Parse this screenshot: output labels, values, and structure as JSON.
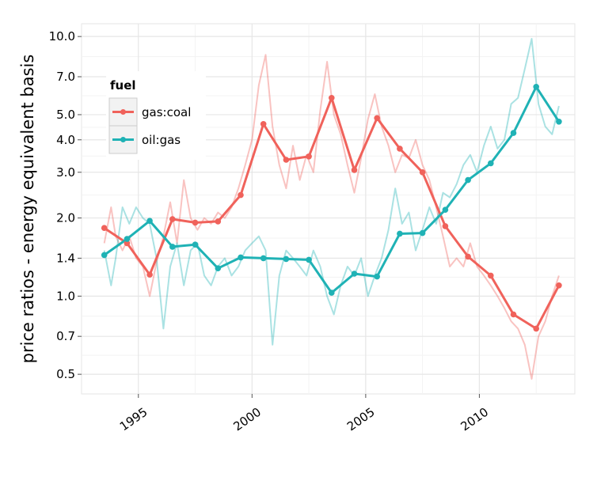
{
  "chart_data": {
    "type": "line",
    "title": "",
    "xlabel": "",
    "ylabel": "price ratios - energy equivalent basis",
    "y_scale": "log",
    "xlim": [
      1992.5,
      2014.2
    ],
    "ylim": [
      0.42,
      11.2
    ],
    "x_ticks": [
      1995,
      2000,
      2005,
      2010
    ],
    "x_tick_labels": [
      "1995",
      "2000",
      "2005",
      "2010"
    ],
    "y_ticks": [
      0.5,
      0.7,
      1.0,
      1.4,
      2.0,
      3.0,
      4.0,
      5.0,
      7.0,
      10.0
    ],
    "y_tick_labels": [
      "0.5",
      "0.7",
      "1.0",
      "1.4",
      "2.0",
      "3.0",
      "4.0",
      "5.0",
      "7.0",
      "10.0"
    ],
    "grid": true,
    "legend": {
      "title": "fuel",
      "position": "top-left"
    },
    "colors": {
      "gas_coal": "#F0625B",
      "oil_gas": "#1FB2B5"
    },
    "series": [
      {
        "name": "gas:coal",
        "color": "#F0625B",
        "x": [
          1993.5,
          1994.5,
          1995.5,
          1996.5,
          1997.5,
          1998.5,
          1999.5,
          2000.5,
          2001.5,
          2002.5,
          2003.5,
          2004.5,
          2005.5,
          2006.5,
          2007.5,
          2008.5,
          2009.5,
          2010.5,
          2011.5,
          2012.5,
          2013.5
        ],
        "values": [
          1.83,
          1.6,
          1.21,
          1.98,
          1.92,
          1.94,
          2.45,
          4.6,
          3.35,
          3.45,
          5.8,
          3.06,
          4.85,
          3.7,
          3.0,
          1.86,
          1.42,
          1.2,
          0.85,
          0.75,
          1.1
        ]
      },
      {
        "name": "oil:gas",
        "color": "#1FB2B5",
        "x": [
          1993.5,
          1994.5,
          1995.5,
          1996.5,
          1997.5,
          1998.5,
          1999.5,
          2000.5,
          2001.5,
          2002.5,
          2003.5,
          2004.5,
          2005.5,
          2006.5,
          2007.5,
          2008.5,
          2009.5,
          2010.5,
          2011.5,
          2012.5,
          2013.5
        ],
        "values": [
          1.44,
          1.66,
          1.95,
          1.55,
          1.58,
          1.28,
          1.41,
          1.4,
          1.39,
          1.38,
          1.03,
          1.22,
          1.19,
          1.74,
          1.75,
          2.15,
          2.8,
          3.25,
          4.25,
          6.4,
          4.7
        ]
      }
    ],
    "monthly_series": [
      {
        "name": "gas:coal",
        "x": [
          1993.5,
          1993.8,
          1994.0,
          1994.3,
          1994.6,
          1994.9,
          1995.2,
          1995.5,
          1995.8,
          1996.1,
          1996.4,
          1996.7,
          1997.0,
          1997.3,
          1997.6,
          1997.9,
          1998.2,
          1998.5,
          1998.8,
          1999.1,
          1999.4,
          1999.7,
          2000.0,
          2000.3,
          2000.6,
          2000.9,
          2001.2,
          2001.5,
          2001.8,
          2002.1,
          2002.4,
          2002.7,
          2003.0,
          2003.3,
          2003.6,
          2003.9,
          2004.2,
          2004.5,
          2004.8,
          2005.1,
          2005.4,
          2005.7,
          2006.0,
          2006.3,
          2006.6,
          2006.9,
          2007.2,
          2007.5,
          2007.8,
          2008.1,
          2008.4,
          2008.7,
          2009.0,
          2009.3,
          2009.6,
          2009.9,
          2010.2,
          2010.5,
          2010.8,
          2011.1,
          2011.4,
          2011.7,
          2012.0,
          2012.3,
          2012.6,
          2012.9,
          2013.2,
          2013.5
        ],
        "values": [
          1.6,
          2.2,
          1.7,
          1.5,
          1.7,
          1.4,
          1.3,
          1.0,
          1.35,
          1.7,
          2.3,
          1.6,
          2.8,
          2.0,
          1.8,
          2.0,
          1.9,
          2.1,
          2.0,
          2.2,
          2.6,
          3.2,
          4.0,
          6.5,
          8.5,
          4.5,
          3.2,
          2.6,
          3.8,
          2.8,
          3.5,
          3.0,
          5.2,
          8.0,
          5.0,
          4.2,
          3.2,
          2.5,
          3.4,
          4.8,
          6.0,
          4.5,
          3.8,
          3.0,
          3.5,
          3.4,
          4.0,
          3.2,
          2.8,
          2.2,
          1.7,
          1.3,
          1.4,
          1.3,
          1.6,
          1.3,
          1.2,
          1.1,
          1.0,
          0.9,
          0.8,
          0.75,
          0.65,
          0.48,
          0.7,
          0.8,
          1.0,
          1.2
        ]
      },
      {
        "name": "oil:gas",
        "x": [
          1993.5,
          1993.8,
          1994.0,
          1994.3,
          1994.6,
          1994.9,
          1995.2,
          1995.5,
          1995.8,
          1996.1,
          1996.4,
          1996.7,
          1997.0,
          1997.3,
          1997.6,
          1997.9,
          1998.2,
          1998.5,
          1998.8,
          1999.1,
          1999.4,
          1999.7,
          2000.0,
          2000.3,
          2000.6,
          2000.9,
          2001.2,
          2001.5,
          2001.8,
          2002.1,
          2002.4,
          2002.7,
          2003.0,
          2003.3,
          2003.6,
          2003.9,
          2004.2,
          2004.5,
          2004.8,
          2005.1,
          2005.4,
          2005.7,
          2006.0,
          2006.3,
          2006.6,
          2006.9,
          2007.2,
          2007.5,
          2007.8,
          2008.1,
          2008.4,
          2008.7,
          2009.0,
          2009.3,
          2009.6,
          2009.9,
          2010.2,
          2010.5,
          2010.8,
          2011.1,
          2011.4,
          2011.7,
          2012.0,
          2012.3,
          2012.6,
          2012.9,
          2013.2,
          2013.5
        ],
        "values": [
          1.5,
          1.1,
          1.4,
          2.2,
          1.9,
          2.2,
          2.0,
          1.9,
          1.4,
          0.75,
          1.3,
          1.6,
          1.1,
          1.5,
          1.6,
          1.2,
          1.1,
          1.3,
          1.4,
          1.2,
          1.3,
          1.5,
          1.6,
          1.7,
          1.5,
          0.65,
          1.2,
          1.5,
          1.4,
          1.3,
          1.2,
          1.5,
          1.3,
          1.0,
          0.85,
          1.1,
          1.3,
          1.2,
          1.4,
          1.0,
          1.2,
          1.4,
          1.8,
          2.6,
          1.9,
          2.1,
          1.5,
          1.8,
          2.2,
          1.9,
          2.5,
          2.4,
          2.7,
          3.2,
          3.5,
          3.0,
          3.8,
          4.5,
          3.7,
          4.0,
          5.5,
          5.8,
          7.5,
          9.8,
          5.5,
          4.5,
          4.2,
          5.4
        ]
      }
    ]
  }
}
